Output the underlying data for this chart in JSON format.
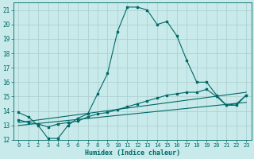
{
  "xlabel": "Humidex (Indice chaleur)",
  "ylabel": "",
  "bg_color": "#c8eaea",
  "grid_color": "#b0d0d0",
  "line_color": "#006868",
  "xlim": [
    -0.5,
    23.5
  ],
  "ylim": [
    12,
    21.5
  ],
  "xticks": [
    0,
    1,
    2,
    3,
    4,
    5,
    6,
    7,
    8,
    9,
    10,
    11,
    12,
    13,
    14,
    15,
    16,
    17,
    18,
    19,
    20,
    21,
    22,
    23
  ],
  "yticks": [
    12,
    13,
    14,
    15,
    16,
    17,
    18,
    19,
    20,
    21
  ],
  "line1_x": [
    0,
    1,
    2,
    3,
    4,
    5,
    6,
    7,
    8,
    9,
    10,
    11,
    12,
    13,
    14,
    15,
    16,
    17,
    18,
    19,
    20,
    21,
    22,
    23
  ],
  "line1_y": [
    13.9,
    13.6,
    13.0,
    12.1,
    12.1,
    13.0,
    13.5,
    13.8,
    15.2,
    16.6,
    19.5,
    21.2,
    21.2,
    21.0,
    20.0,
    20.2,
    19.2,
    17.5,
    16.0,
    16.0,
    15.1,
    14.4,
    14.5,
    15.1
  ],
  "line2_x": [
    0,
    1,
    2,
    3,
    4,
    5,
    6,
    7,
    8,
    9,
    10,
    11,
    12,
    13,
    14,
    15,
    16,
    17,
    18,
    19,
    20,
    21,
    22,
    23
  ],
  "line2_y": [
    13.4,
    13.2,
    13.1,
    12.9,
    13.1,
    13.2,
    13.3,
    13.6,
    13.8,
    13.9,
    14.1,
    14.3,
    14.5,
    14.7,
    14.9,
    15.1,
    15.2,
    15.3,
    15.3,
    15.5,
    15.0,
    14.4,
    14.4,
    15.1
  ],
  "line3_x": [
    0,
    23
  ],
  "line3_y": [
    13.2,
    15.3
  ],
  "line4_x": [
    0,
    23
  ],
  "line4_y": [
    13.0,
    14.6
  ]
}
